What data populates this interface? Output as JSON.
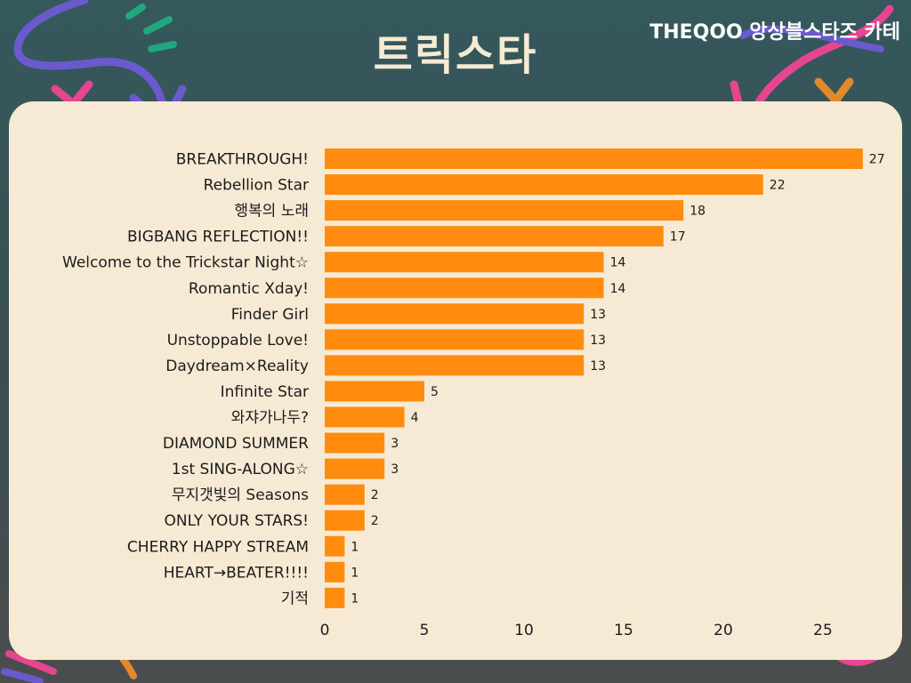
{
  "title": "트릭스타",
  "source": "THEQOO 앙상블스타즈 카테",
  "colors": {
    "bar": "#ff8c0f",
    "panel": "#f7ead4",
    "title": "#f6ead2"
  },
  "chart_data": {
    "type": "bar",
    "orientation": "horizontal",
    "title": "트릭스타",
    "xlabel": "",
    "ylabel": "",
    "xlim": [
      0,
      27
    ],
    "xticks": [
      0,
      5,
      10,
      15,
      20,
      25
    ],
    "grid": false,
    "categories": [
      "BREAKTHROUGH!",
      "Rebellion Star",
      "행복의 노래",
      "BIGBANG REFLECTION!!",
      "Welcome to the Trickstar Night☆",
      "Romantic Xday!",
      "Finder Girl",
      "Unstoppable Love!",
      "Daydream×Reality",
      "Infinite Star",
      "와쟈가나두?",
      "DIAMOND SUMMER",
      "1st SING-ALONG☆",
      "무지갯빛의 Seasons",
      "ONLY YOUR STARS!",
      "CHERRY HAPPY STREAM",
      "HEART→BEATER!!!!",
      "기적"
    ],
    "values": [
      27,
      22,
      18,
      17,
      14,
      14,
      13,
      13,
      13,
      5,
      4,
      3,
      3,
      2,
      2,
      1,
      1,
      1
    ]
  }
}
